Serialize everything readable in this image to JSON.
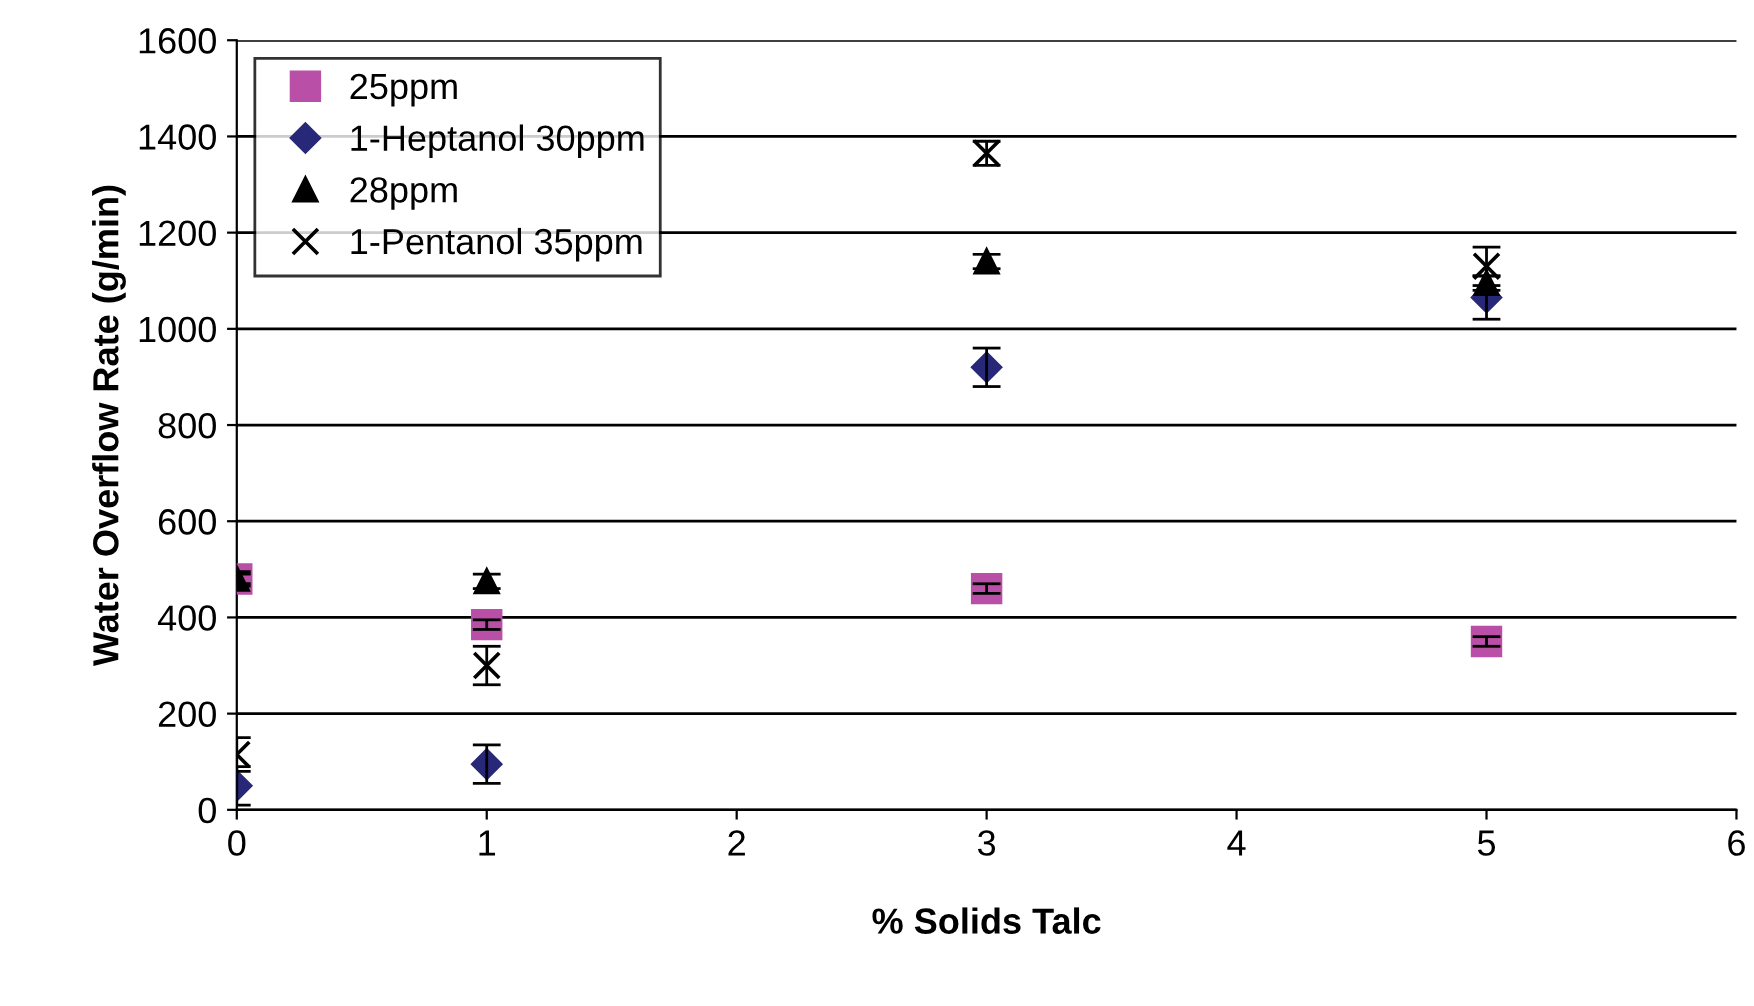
{
  "chart_data": {
    "type": "scatter",
    "xlabel": "% Solids Talc",
    "ylabel": "Water Overflow Rate (g/min)",
    "x": [
      0,
      1,
      3,
      5
    ],
    "series": [
      {
        "name": "25ppm",
        "color": "#b94fa6",
        "marker": "square",
        "values": [
          480,
          385,
          460,
          350
        ],
        "errors": [
          10,
          10,
          10,
          10
        ]
      },
      {
        "name": "1-Heptanol 30ppm",
        "color": "#282878",
        "marker": "diamond",
        "values": [
          50,
          95,
          920,
          1065
        ],
        "errors": [
          40,
          40,
          40,
          45
        ]
      },
      {
        "name": "28ppm",
        "color": "#000000",
        "marker": "triangle",
        "values": [
          480,
          475,
          1140,
          1095
        ],
        "errors": [
          15,
          15,
          15,
          15
        ]
      },
      {
        "name": "1-Pentanol 35ppm",
        "color": "#000000",
        "marker": "cross",
        "values": [
          115,
          300,
          1365,
          1130
        ],
        "errors": [
          35,
          40,
          25,
          40
        ]
      }
    ],
    "xlim": [
      0,
      6
    ],
    "xticks": [
      0,
      1,
      2,
      3,
      4,
      5,
      6
    ],
    "ylim": [
      0,
      1600
    ],
    "yticks": [
      0,
      200,
      400,
      600,
      800,
      1000,
      1200,
      1400,
      1600
    ],
    "grid": "y",
    "legend": "top left"
  }
}
